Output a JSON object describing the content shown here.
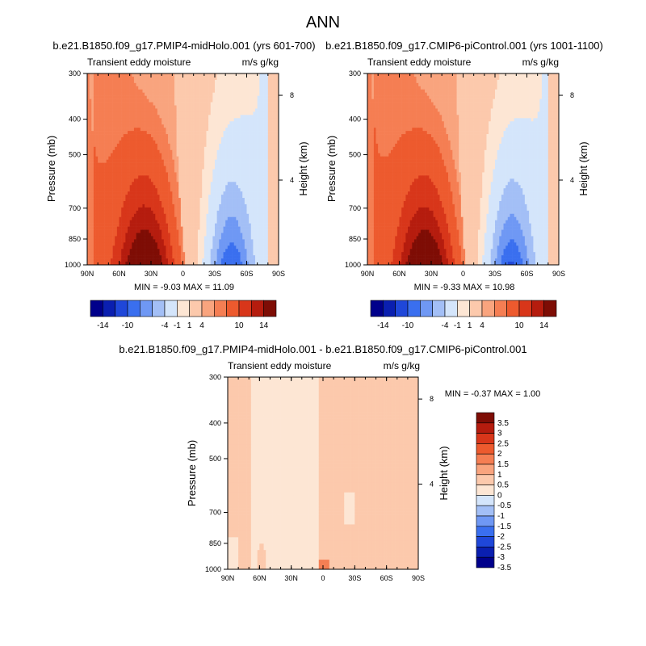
{
  "figure_title": "ANN",
  "colors": {
    "full_scale": [
      "#00008b",
      "#0a1fb0",
      "#1f47d9",
      "#3a6fef",
      "#6f98f4",
      "#a3bff6",
      "#d4e5fb",
      "#fde6d4",
      "#fcc9ac",
      "#f9a47e",
      "#f57e53",
      "#ed5a2e",
      "#d8361a",
      "#b51c0e",
      "#7e0d05"
    ],
    "diff_scale": [
      "#00008b",
      "#0a1fb0",
      "#1f47d9",
      "#3a6fef",
      "#6f98f4",
      "#a3bff6",
      "#d4e5fb",
      "#fde6d4",
      "#fcc9ac",
      "#f9a47e",
      "#f57e53",
      "#ed5a2e",
      "#d8361a",
      "#b51c0e",
      "#7e0d05"
    ]
  },
  "chart_data": [
    {
      "type": "heatmap",
      "title": "b.e21.B1850.f09_g17.PMIP4-midHolo.001 (yrs 601-700)",
      "left_label": "Transient eddy moisture",
      "right_label": "m/s g/kg",
      "ylabel": "Pressure (mb)",
      "y2label": "Height (km)",
      "xticks": [
        "90N",
        "60N",
        "30N",
        "0",
        "30S",
        "60S",
        "90S"
      ],
      "yticks": [
        "300",
        "400",
        "500",
        "700",
        "850",
        "1000"
      ],
      "y2ticks": [
        "8",
        "4"
      ],
      "stats": "MIN =  -9.03   MAX =  11.09",
      "colorbar_labels": [
        "-14",
        "-10",
        "-4",
        "-1",
        "1",
        "4",
        "10",
        "14"
      ],
      "positive_lobe_center": {
        "lat": 35,
        "pressure": 975,
        "max": 11.09
      },
      "negative_lobe_center": {
        "lat": -45,
        "pressure": 975,
        "min": -9.03
      },
      "zero_line_lat_at_top": 8,
      "zero_line_lat_at_bottom": -2
    },
    {
      "type": "heatmap",
      "title": "b.e21.B1850.f09_g17.CMIP6-piControl.001 (yrs 1001-1100)",
      "left_label": "Transient eddy moisture",
      "right_label": "m/s g/kg",
      "ylabel": "Pressure (mb)",
      "y2label": "Height (km)",
      "xticks": [
        "90N",
        "60N",
        "30N",
        "0",
        "30S",
        "60S",
        "90S"
      ],
      "yticks": [
        "300",
        "400",
        "500",
        "700",
        "850",
        "1000"
      ],
      "y2ticks": [
        "8",
        "4"
      ],
      "stats": "MIN =  -9.33   MAX =  10.98",
      "colorbar_labels": [
        "-14",
        "-10",
        "-4",
        "-1",
        "1",
        "4",
        "10",
        "14"
      ],
      "positive_lobe_center": {
        "lat": 35,
        "pressure": 975,
        "max": 10.98
      },
      "negative_lobe_center": {
        "lat": -45,
        "pressure": 975,
        "min": -9.33
      },
      "zero_line_lat_at_top": 6,
      "zero_line_lat_at_bottom": -2
    },
    {
      "type": "heatmap",
      "title": "b.e21.B1850.f09_g17.PMIP4-midHolo.001 - b.e21.B1850.f09_g17.CMIP6-piControl.001",
      "left_label": "Transient eddy moisture",
      "right_label": "m/s g/kg",
      "ylabel": "Pressure (mb)",
      "y2label": "Height (km)",
      "xticks": [
        "90N",
        "60N",
        "30N",
        "0",
        "30S",
        "60S",
        "90S"
      ],
      "yticks": [
        "300",
        "400",
        "500",
        "700",
        "850",
        "1000"
      ],
      "y2ticks": [
        "8",
        "4"
      ],
      "stats": "MIN =  -0.37   MAX =   1.00",
      "colorbar_labels": [
        "3.5",
        "3",
        "2.5",
        "2",
        "1.5",
        "1",
        "0.5",
        "0",
        "-0.5",
        "-1",
        "-1.5",
        "-2",
        "-2.5",
        "-3",
        "-3.5"
      ]
    }
  ]
}
